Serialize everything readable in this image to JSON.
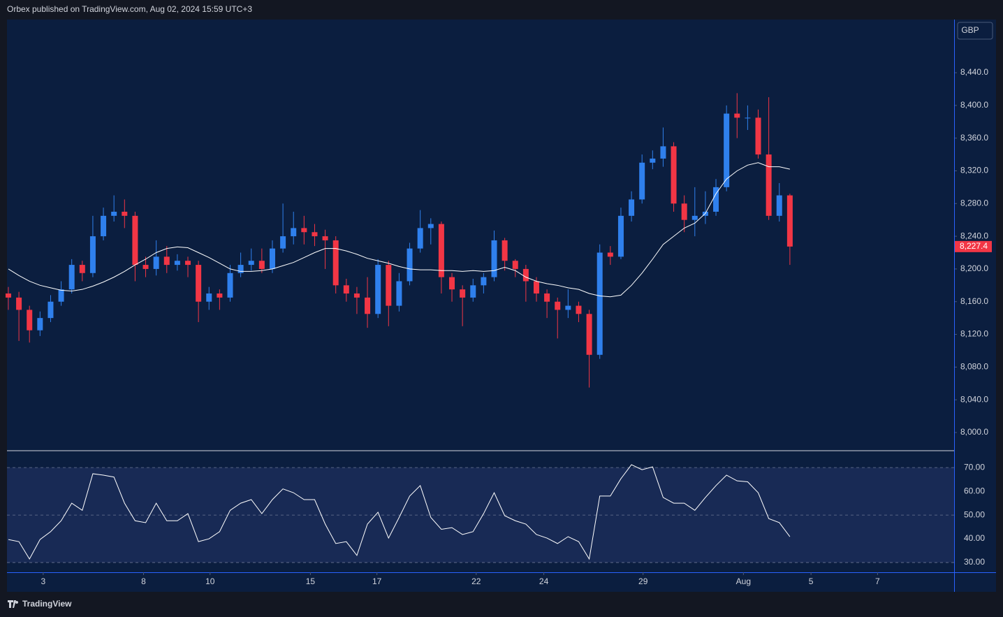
{
  "header": "Orbex published on TradingView.com, Aug 02, 2024 15:59 UTC+3",
  "footer": "TradingView",
  "currency": "GBP",
  "chart_data": [
    {
      "type": "candlestick",
      "up_color": "#2f80ed",
      "down_color": "#f23645",
      "open": [
        8170,
        8165,
        8150,
        8125,
        8140,
        8160,
        8175,
        8205,
        8195,
        8240,
        8265,
        8270,
        8265,
        8205,
        8200,
        8215,
        8205,
        8210,
        8205,
        8160,
        8170,
        8165,
        8195,
        8205,
        8210,
        8200,
        8225,
        8240,
        8250,
        8245,
        8240,
        8235,
        8180,
        8170,
        8165,
        8145,
        8205,
        8155,
        8185,
        8225,
        8250,
        8255,
        8190,
        8175,
        8165,
        8180,
        8190,
        8235,
        8210,
        8200,
        8185,
        8170,
        8160,
        8150,
        8155,
        8145,
        8095,
        8220,
        8215,
        8265,
        8285,
        8330,
        8335,
        8350,
        8280,
        8260,
        8265,
        8270,
        8300,
        8390,
        8385,
        8385,
        8340,
        8265,
        8290
      ],
      "high": [
        8178,
        8172,
        8155,
        8148,
        8168,
        8185,
        8212,
        8210,
        8265,
        8275,
        8290,
        8285,
        8270,
        8215,
        8235,
        8228,
        8218,
        8215,
        8210,
        8178,
        8175,
        8205,
        8220,
        8225,
        8225,
        8235,
        8280,
        8270,
        8265,
        8255,
        8248,
        8240,
        8188,
        8178,
        8190,
        8212,
        8210,
        8195,
        8232,
        8272,
        8262,
        8258,
        8195,
        8180,
        8188,
        8195,
        8247,
        8238,
        8212,
        8205,
        8190,
        8175,
        8165,
        8175,
        8160,
        8150,
        8230,
        8228,
        8275,
        8295,
        8340,
        8345,
        8373,
        8355,
        8290,
        8300,
        8295,
        8310,
        8400,
        8415,
        8400,
        8395,
        8410,
        8305,
        8292
      ],
      "low": [
        8150,
        8112,
        8110,
        8118,
        8135,
        8155,
        8170,
        8185,
        8190,
        8235,
        8258,
        8250,
        8185,
        8190,
        8192,
        8195,
        8198,
        8190,
        8135,
        8150,
        8150,
        8160,
        8190,
        8198,
        8195,
        8195,
        8220,
        8230,
        8230,
        8228,
        8200,
        8170,
        8160,
        8145,
        8128,
        8140,
        8130,
        8148,
        8180,
        8220,
        8230,
        8170,
        8160,
        8130,
        8160,
        8170,
        8185,
        8198,
        8190,
        8160,
        8160,
        8140,
        8115,
        8140,
        8135,
        8055,
        8090,
        8205,
        8212,
        8258,
        8280,
        8322,
        8325,
        8270,
        8245,
        8240,
        8255,
        8265,
        8295,
        8360,
        8370,
        8335,
        8260,
        8258,
        8205
      ],
      "close": [
        8165,
        8150,
        8125,
        8140,
        8160,
        8175,
        8205,
        8195,
        8240,
        8265,
        8270,
        8265,
        8205,
        8200,
        8215,
        8205,
        8210,
        8205,
        8160,
        8170,
        8165,
        8195,
        8205,
        8210,
        8200,
        8225,
        8240,
        8250,
        8245,
        8240,
        8235,
        8180,
        8170,
        8165,
        8145,
        8205,
        8155,
        8185,
        8225,
        8250,
        8255,
        8190,
        8175,
        8165,
        8180,
        8190,
        8235,
        8210,
        8200,
        8185,
        8170,
        8160,
        8150,
        8155,
        8145,
        8095,
        8220,
        8215,
        8265,
        8285,
        8330,
        8335,
        8350,
        8280,
        8260,
        8265,
        8270,
        8300,
        8390,
        8385,
        8385,
        8340,
        8265,
        8290,
        8227.4
      ],
      "last_label": "8,227.4",
      "ma": {
        "color": "#ffffff",
        "values": [
          8200,
          8192,
          8185,
          8180,
          8177,
          8174,
          8173,
          8175,
          8179,
          8184,
          8190,
          8197,
          8205,
          8212,
          8220,
          8225,
          8227,
          8226,
          8220,
          8214,
          8207,
          8200,
          8197,
          8197,
          8198,
          8200,
          8204,
          8208,
          8214,
          8220,
          8225,
          8225,
          8222,
          8218,
          8213,
          8210,
          8207,
          8203,
          8200,
          8199,
          8199,
          8198,
          8198,
          8197,
          8198,
          8197,
          8198,
          8202,
          8198,
          8190,
          8185,
          8182,
          8180,
          8177,
          8175,
          8170,
          8167,
          8166,
          8168,
          8180,
          8195,
          8212,
          8230,
          8240,
          8250,
          8256,
          8268,
          8292,
          8310,
          8320,
          8327,
          8330,
          8325,
          8325,
          8322
        ]
      },
      "xlim": [
        -0.13,
        89.55
      ],
      "xticks": [
        {
          "value": 3.3,
          "label": "3"
        },
        {
          "value": 12.8,
          "label": "8"
        },
        {
          "value": 19.1,
          "label": "10"
        },
        {
          "value": 28.6,
          "label": "15"
        },
        {
          "value": 34.9,
          "label": "17"
        },
        {
          "value": 44.3,
          "label": "22"
        },
        {
          "value": 50.7,
          "label": "24"
        },
        {
          "value": 60.1,
          "label": "29"
        },
        {
          "value": 69.6,
          "label": "Aug"
        },
        {
          "value": 76.0,
          "label": "5"
        },
        {
          "value": 82.3,
          "label": "7"
        }
      ],
      "ylim": [
        7978.6,
        8505
      ],
      "yticks": [
        {
          "value": 8000,
          "label": "8,000.0"
        },
        {
          "value": 8040,
          "label": "8,040.0"
        },
        {
          "value": 8080,
          "label": "8,080.0"
        },
        {
          "value": 8120,
          "label": "8,120.0"
        },
        {
          "value": 8160,
          "label": "8,160.0"
        },
        {
          "value": 8200,
          "label": "8,200.0"
        },
        {
          "value": 8240,
          "label": "8,240.0"
        },
        {
          "value": 8280,
          "label": "8,280.0"
        },
        {
          "value": 8320,
          "label": "8,320.0"
        },
        {
          "value": 8360,
          "label": "8,360.0"
        },
        {
          "value": 8400,
          "label": "8,400.0"
        },
        {
          "value": 8440,
          "label": "8,440.0"
        }
      ]
    },
    {
      "type": "line",
      "series": [
        {
          "color": "#ffffff",
          "values": [
            39.7,
            38.8,
            31.5,
            39.7,
            43,
            47.6,
            55,
            52,
            67.4,
            66.8,
            66,
            55,
            47.6,
            46.8,
            55,
            47.6,
            47.6,
            50.6,
            38.8,
            40,
            43,
            52,
            55,
            56.5,
            50.6,
            56.5,
            61,
            59.4,
            56.5,
            56.5,
            46.2,
            38,
            38.8,
            33,
            46.2,
            51.2,
            40.3,
            49,
            58,
            62.4,
            49,
            44,
            44.7,
            41.8,
            43,
            50.6,
            59.4,
            49.7,
            47.6,
            46.2,
            41.8,
            40.3,
            38,
            40.9,
            38.8,
            31.5,
            58,
            58,
            65.3,
            71.2,
            69.1,
            70.3,
            57.4,
            55,
            55,
            52,
            57.4,
            62.4,
            66.8,
            64.4,
            64,
            59.4,
            48.5,
            46.8,
            40.9
          ]
        }
      ],
      "band": [
        30,
        70
      ],
      "ylim": [
        25.9,
        76.8
      ],
      "yticks": [
        {
          "value": 30,
          "label": "30.00"
        },
        {
          "value": 40,
          "label": "40.00"
        },
        {
          "value": 50,
          "label": "50.00"
        },
        {
          "value": 60,
          "label": "60.00"
        },
        {
          "value": 70,
          "label": "70.00"
        }
      ]
    }
  ]
}
